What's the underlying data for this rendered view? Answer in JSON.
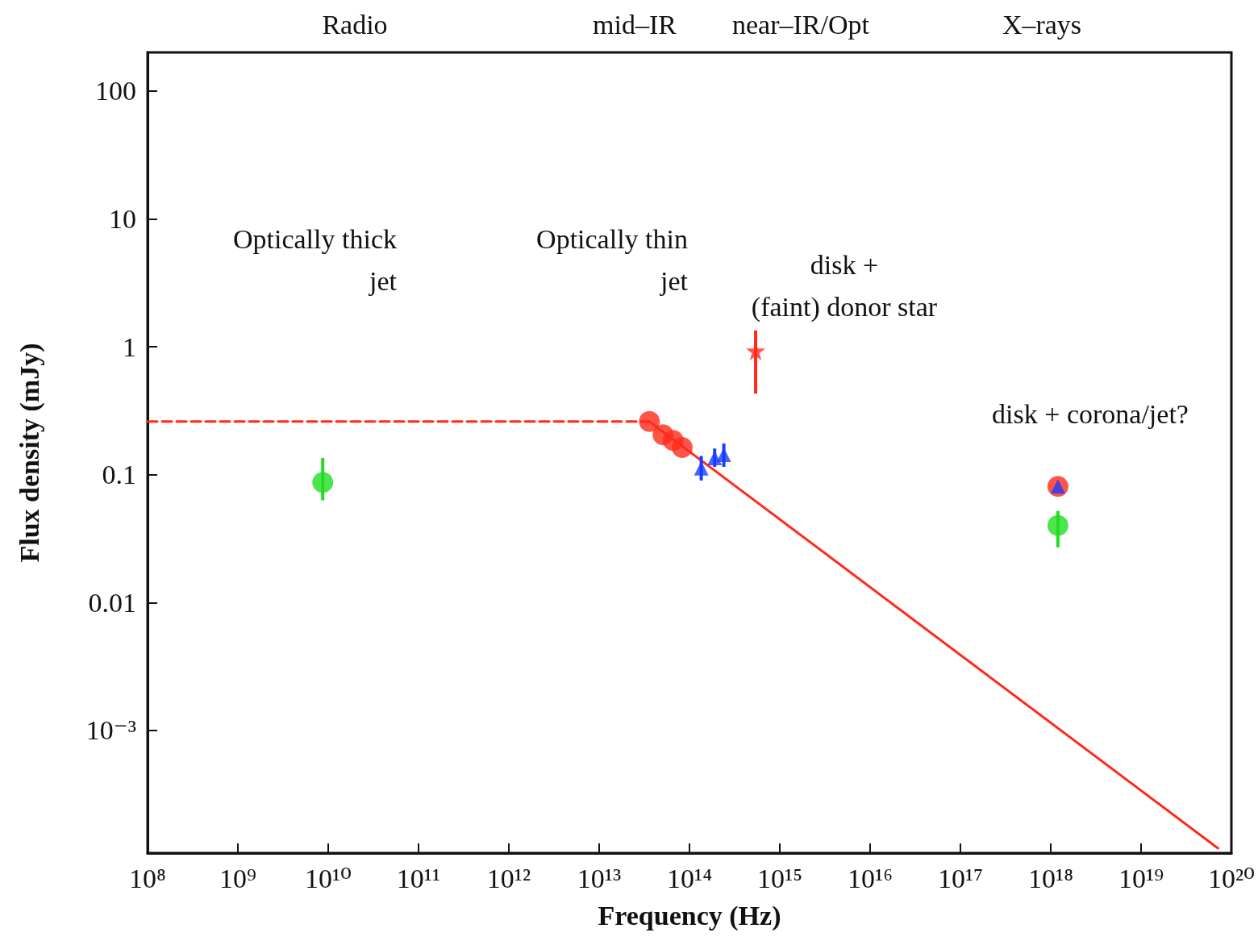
{
  "chart_data": {
    "type": "scatter",
    "xlabel": "Frequency (Hz)",
    "ylabel": "Flux density (mJy)",
    "log": "xy",
    "grid": false,
    "xlim": [
      100000000.0,
      1e+20
    ],
    "ylim": [
      0.00011,
      200
    ],
    "xticks": [
      {
        "value": 100000000.0,
        "label": "10⁸"
      },
      {
        "value": 1000000000.0,
        "label": "10⁹"
      },
      {
        "value": 10000000000.0,
        "label": "10¹⁰"
      },
      {
        "value": 100000000000.0,
        "label": "10¹¹"
      },
      {
        "value": 1000000000000.0,
        "label": "10¹²"
      },
      {
        "value": 10000000000000.0,
        "label": "10¹³"
      },
      {
        "value": 100000000000000.0,
        "label": "10¹⁴"
      },
      {
        "value": 1000000000000000.0,
        "label": "10¹⁵"
      },
      {
        "value": 1e+16,
        "label": "10¹⁶"
      },
      {
        "value": 1e+17,
        "label": "10¹⁷"
      },
      {
        "value": 1e+18,
        "label": "10¹⁸"
      },
      {
        "value": 1e+19,
        "label": "10¹⁹"
      },
      {
        "value": 1e+20,
        "label": "10²⁰"
      }
    ],
    "yticks": [
      {
        "value": 0.001,
        "label": "10⁻³"
      },
      0.01,
      0.1,
      1,
      10,
      100
    ],
    "series": [
      {
        "type": "line",
        "color": "#ff2a1a",
        "line_style": "dashed",
        "marker": "none",
        "x": [
          100000000.0,
          36000000000000.0
        ],
        "values": [
          0.26,
          0.26
        ]
      },
      {
        "type": "line",
        "color": "#ff2a1a",
        "line_style": "solid",
        "marker": "none",
        "x": [
          36000000000000.0,
          7.1e+19
        ],
        "values": [
          0.26,
          0.00012
        ]
      },
      {
        "color": "#ff2a1a",
        "marker": "circle",
        "x": [
          36000000000000.0,
          51000000000000.0,
          66000000000000.0,
          83000000000000.0
        ],
        "values": [
          0.26,
          0.205,
          0.185,
          0.163
        ]
      },
      {
        "color": "#1a3cff",
        "marker": "triangle",
        "x": [
          135000000000000.0,
          190000000000000.0,
          240000000000000.0
        ],
        "values": [
          0.112,
          0.135,
          0.143
        ],
        "errors": [
          [
            0.09,
            0.14
          ],
          [
            0.115,
            0.16
          ],
          [
            0.115,
            0.175
          ]
        ]
      },
      {
        "color": "#ff2a1a",
        "marker": "star",
        "x": [
          540000000000000.0
        ],
        "values": [
          0.93
        ],
        "errors": [
          [
            0.43,
            1.34
          ]
        ]
      },
      {
        "color": "#22dd22",
        "marker": "circle",
        "x": [
          8700000000.0
        ],
        "values": [
          0.087
        ],
        "errors": [
          [
            0.063,
            0.135
          ]
        ]
      },
      {
        "color": "#ff2a1a",
        "marker": "circle",
        "x": [
          1.2e+18
        ],
        "values": [
          0.081
        ]
      },
      {
        "color": "#1a3cff",
        "marker": "triangle",
        "x": [
          1.2e+18
        ],
        "values": [
          0.081
        ]
      },
      {
        "color": "#22dd22",
        "marker": "circle",
        "x": [
          1.2e+18
        ],
        "values": [
          0.04
        ],
        "errors": [
          [
            0.027,
            0.052
          ]
        ]
      }
    ],
    "annotations": [
      "Radio",
      "mid–IR",
      "near–IR/Opt",
      "X–rays",
      "Optically thick\njet",
      "Optically thin\njet",
      "disk +\n(faint) donor star",
      "disk + corona/jet?"
    ]
  }
}
